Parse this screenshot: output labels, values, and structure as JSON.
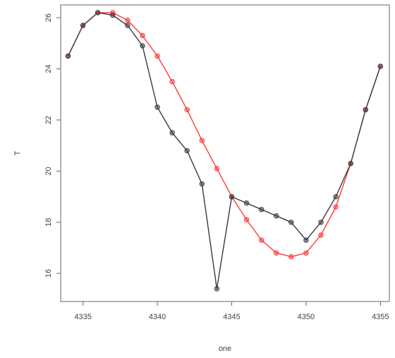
{
  "chart_data": {
    "type": "line",
    "xlabel": "one",
    "ylabel": "T",
    "xlim": [
      4333.5,
      4355.6
    ],
    "ylim": [
      14.9,
      26.5
    ],
    "x_ticks": [
      4335,
      4340,
      4345,
      4350,
      4355
    ],
    "y_ticks": [
      16,
      18,
      20,
      22,
      24,
      26
    ],
    "grid": false,
    "series": [
      {
        "color": "#ff3b3b",
        "marker": "circle",
        "points": [
          [
            4334,
            24.5
          ],
          [
            4335,
            25.7
          ],
          [
            4336,
            26.2
          ],
          [
            4337,
            26.2
          ],
          [
            4338,
            25.9
          ],
          [
            4339,
            25.3
          ],
          [
            4340,
            24.5
          ],
          [
            4341,
            23.5
          ],
          [
            4342,
            22.4
          ],
          [
            4343,
            21.2
          ],
          [
            4344,
            20.1
          ],
          [
            4345,
            19.0
          ],
          [
            4346,
            18.1
          ],
          [
            4347,
            17.3
          ],
          [
            4348,
            16.8
          ],
          [
            4349,
            16.65
          ],
          [
            4350,
            16.8
          ],
          [
            4351,
            17.5
          ],
          [
            4352,
            18.6
          ],
          [
            4353,
            20.3
          ],
          [
            4354,
            22.4
          ],
          [
            4355,
            24.1
          ]
        ]
      },
      {
        "color": "#3a3a3a",
        "marker": "circle",
        "points": [
          [
            4334,
            24.5
          ],
          [
            4335,
            25.7
          ],
          [
            4336,
            26.2
          ],
          [
            4337,
            26.1
          ],
          [
            4338,
            25.7
          ],
          [
            4339,
            24.9
          ],
          [
            4340,
            22.5
          ],
          [
            4341,
            21.5
          ],
          [
            4342,
            20.8
          ],
          [
            4343,
            19.5
          ],
          [
            4344,
            15.4
          ],
          [
            4345,
            19.0
          ],
          [
            4346,
            18.75
          ],
          [
            4347,
            18.5
          ],
          [
            4348,
            18.25
          ],
          [
            4349,
            18.0
          ],
          [
            4350,
            17.3
          ],
          [
            4351,
            18.0
          ],
          [
            4352,
            19.0
          ],
          [
            4353,
            20.3
          ],
          [
            4354,
            22.4
          ],
          [
            4355,
            24.1
          ]
        ]
      }
    ]
  }
}
